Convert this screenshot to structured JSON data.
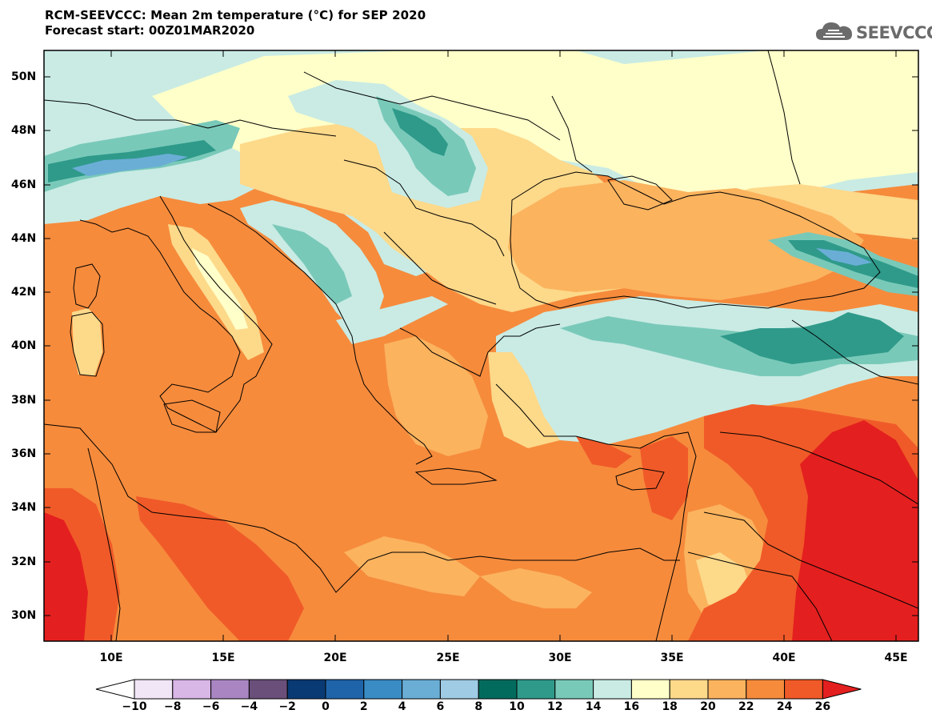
{
  "header": {
    "title": "RCM-SEEVCCC: Mean 2m temperature (°C) for SEP 2020",
    "subtitle": "Forecast start: 00Z01MAR2020"
  },
  "logo": {
    "text": "SEEVCCC",
    "icon": "cloud-icon",
    "color": "#6b6b6b"
  },
  "map": {
    "lon_range": [
      7,
      46
    ],
    "lat_range": [
      29,
      51
    ],
    "lat_labels": [
      "50N",
      "48N",
      "46N",
      "44N",
      "42N",
      "40N",
      "38N",
      "36N",
      "34N",
      "32N",
      "30N"
    ],
    "lon_labels": [
      "10E",
      "15E",
      "20E",
      "25E",
      "30E",
      "35E",
      "40E",
      "45E"
    ]
  },
  "colorbar": {
    "labels": [
      "−10",
      "−8",
      "−6",
      "−4",
      "−2",
      "0",
      "2",
      "4",
      "6",
      "8",
      "10",
      "12",
      "14",
      "16",
      "18",
      "20",
      "22",
      "24",
      "26"
    ],
    "low_extend_color": "#ffffff",
    "high_extend_color": "#e41f1f",
    "colors": [
      "#f0e6f6",
      "#d8b6e6",
      "#a986c2",
      "#6a4f7a",
      "#0a3a73",
      "#1f64a8",
      "#3a8cc4",
      "#6aaed6",
      "#9fcbe4",
      "#036b5e",
      "#2f9a8a",
      "#79c9b9",
      "#c9ebe4",
      "#ffffc9",
      "#fdd98a",
      "#fbb35e",
      "#f68b3c",
      "#f05a28"
    ]
  }
}
